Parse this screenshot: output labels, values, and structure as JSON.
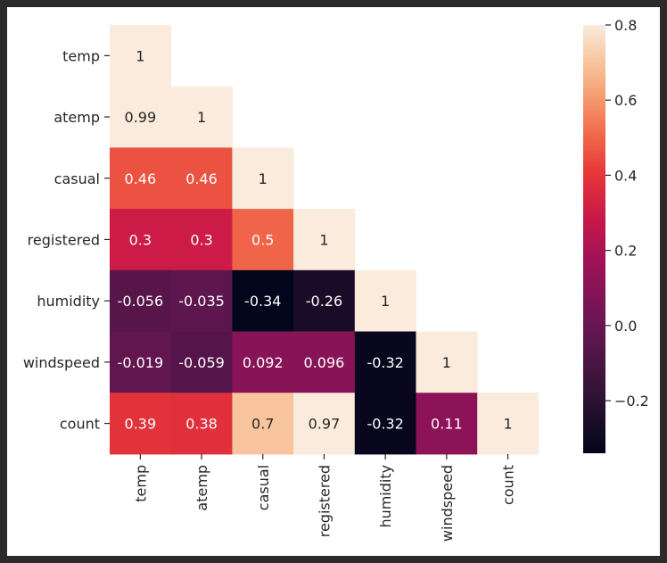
{
  "chart_data": {
    "type": "heatmap",
    "title": "",
    "xlabel": "",
    "ylabel": "",
    "variables": [
      "temp",
      "atemp",
      "casual",
      "registered",
      "humidity",
      "windspeed",
      "count"
    ],
    "matrix": [
      [
        1,
        null,
        null,
        null,
        null,
        null,
        null
      ],
      [
        0.99,
        1,
        null,
        null,
        null,
        null,
        null
      ],
      [
        0.46,
        0.46,
        1,
        null,
        null,
        null,
        null
      ],
      [
        0.3,
        0.3,
        0.5,
        1,
        null,
        null,
        null
      ],
      [
        -0.056,
        -0.035,
        -0.34,
        -0.26,
        1,
        null,
        null
      ],
      [
        -0.019,
        -0.059,
        0.092,
        0.096,
        -0.32,
        1,
        null
      ],
      [
        0.39,
        0.38,
        0.7,
        0.97,
        -0.32,
        0.11,
        1
      ]
    ],
    "cell_labels": [
      [
        "1",
        "",
        "",
        "",
        "",
        "",
        ""
      ],
      [
        "0.99",
        "1",
        "",
        "",
        "",
        "",
        ""
      ],
      [
        "0.46",
        "0.46",
        "1",
        "",
        "",
        "",
        ""
      ],
      [
        "0.3",
        "0.3",
        "0.5",
        "1",
        "",
        "",
        ""
      ],
      [
        "-0.056",
        "-0.035",
        "-0.34",
        "-0.26",
        "1",
        "",
        ""
      ],
      [
        "-0.019",
        "-0.059",
        "0.092",
        "0.096",
        "-0.32",
        "1",
        ""
      ],
      [
        "0.39",
        "0.38",
        "0.7",
        "0.97",
        "-0.32",
        "0.11",
        "1"
      ]
    ],
    "colormap": "rocket",
    "color_range": [
      -0.34,
      0.8
    ],
    "colorbar": {
      "ticks": [
        0.8,
        0.6,
        0.4,
        0.2,
        0.0,
        -0.2
      ],
      "tick_labels": [
        "0.8",
        "0.6",
        "0.4",
        "0.2",
        "0.0",
        "−0.2"
      ]
    },
    "mask": "upper-triangle",
    "grid": false,
    "legend": "colorbar-right"
  }
}
